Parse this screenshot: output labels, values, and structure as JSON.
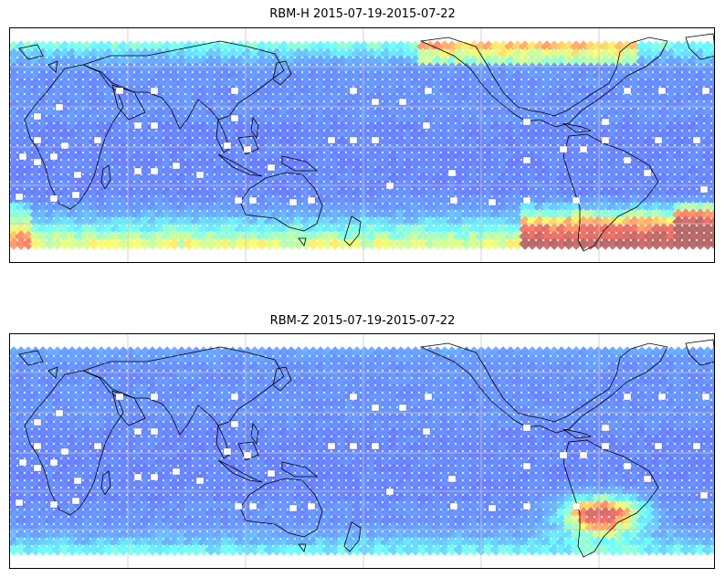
{
  "figure": {
    "panels": [
      {
        "title": "RBM-H 2015-07-19-2015-07-22",
        "colormap": "jet",
        "high_regions": [
          {
            "lon_range": [
              -30,
              30
            ],
            "lat_range": [
              -65,
              -35
            ],
            "level": "high"
          },
          {
            "lon_range": [
              -60,
              0
            ],
            "lat_range": [
              -65,
              -25
            ],
            "level": "high"
          },
          {
            "lon_range": [
              -140,
              -80
            ],
            "lat_range": [
              60,
              80
            ],
            "level": "medium-high"
          },
          {
            "lon_range": [
              -110,
              -60
            ],
            "lat_range": [
              -65,
              -45
            ],
            "level": "medium-high"
          }
        ]
      },
      {
        "title": "RBM-Z 2015-07-19-2015-07-22",
        "colormap": "jet",
        "high_regions": [
          {
            "lon_range": [
              -60,
              -20
            ],
            "lat_range": [
              -50,
              -20
            ],
            "level": "high"
          }
        ]
      }
    ],
    "colors": {
      "low": "#6464ff",
      "medium_low": "#64c8ff",
      "medium": "#64ffff",
      "medium_high": "#ffff64",
      "high": "#ff6464",
      "very_high": "#b46464",
      "coastline": "#000000",
      "grid": "#c8c8c8"
    },
    "grid": true
  }
}
